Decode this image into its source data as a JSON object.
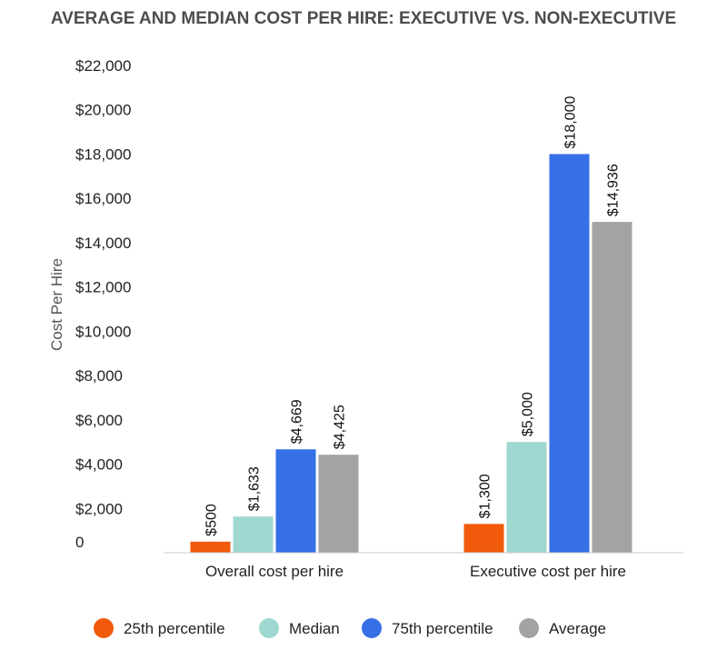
{
  "chart_data": {
    "type": "bar",
    "title": "AVERAGE AND MEDIAN COST PER HIRE: EXECUTIVE VS. NON-EXECUTIVE",
    "xlabel": "",
    "ylabel": "Cost Per Hire",
    "ylim": [
      0,
      22000
    ],
    "yticks": [
      0,
      2000,
      4000,
      6000,
      8000,
      10000,
      12000,
      14000,
      16000,
      18000,
      20000,
      22000
    ],
    "ytick_labels": [
      "0",
      "$2,000",
      "$4,000",
      "$6,000",
      "$8,000",
      "$10,000",
      "$12,000",
      "$14,000",
      "$16,000",
      "$18,000",
      "$20,000",
      "$22,000"
    ],
    "categories": [
      "Overall cost per hire",
      "Executive cost per hire"
    ],
    "series": [
      {
        "name": "25th percentile",
        "color": "#f05a0a",
        "values": [
          500,
          1300
        ],
        "labels": [
          "$500",
          "$1,300"
        ]
      },
      {
        "name": "Median",
        "color": "#9ed8d0",
        "values": [
          1633,
          5000
        ],
        "labels": [
          "$1,633",
          "$5,000"
        ]
      },
      {
        "name": "75th percentile",
        "color": "#3670e6",
        "values": [
          4669,
          18000
        ],
        "labels": [
          "$4,669",
          "$18,000"
        ]
      },
      {
        "name": "Average",
        "color": "#a3a3a3",
        "values": [
          4425,
          14936
        ],
        "labels": [
          "$4,425",
          "$14,936"
        ]
      }
    ],
    "grid": false,
    "legend_position": "bottom"
  }
}
